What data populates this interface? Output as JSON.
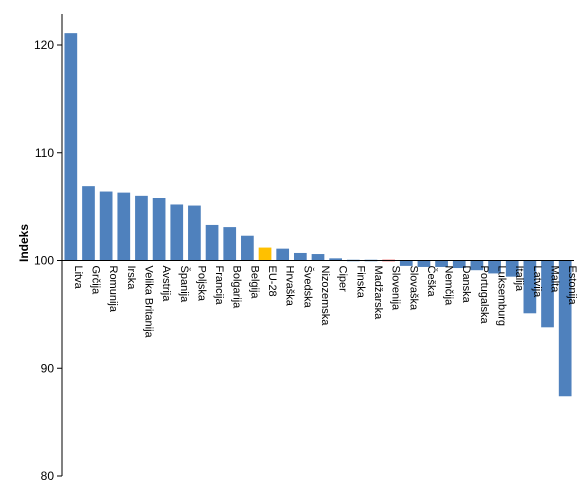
{
  "chart_data": {
    "type": "bar",
    "ylabel": "Indeks",
    "ylim": [
      80,
      125
    ],
    "yticks": [
      80,
      90,
      100,
      110,
      120
    ],
    "baseline": 100,
    "grid": false,
    "default_color": "#4f81bd",
    "categories": [
      "Litva",
      "Grčija",
      "Romunija",
      "Irska",
      "Velika Britanija",
      "Avstrija",
      "Španija",
      "Poljska",
      "Francija",
      "Bolgarija",
      "Belgija",
      "EU-28",
      "Hrvaška",
      "Švedska",
      "Nizozemska",
      "Ciper",
      "Finska",
      "Madžarska",
      "Slovenija",
      "Slovaška",
      "Češka",
      "Nemčija",
      "Danska",
      "Portugalska",
      "Luksemburg",
      "Italija",
      "Latvija",
      "Malta",
      "Estonija"
    ],
    "values": [
      121.1,
      106.9,
      106.4,
      106.3,
      106.0,
      105.8,
      105.2,
      105.1,
      103.3,
      103.1,
      102.3,
      101.2,
      101.1,
      100.7,
      100.6,
      100.2,
      100.1,
      100.0,
      99.9,
      99.5,
      99.4,
      99.4,
      99.3,
      99.1,
      98.8,
      98.5,
      95.1,
      93.8,
      87.4
    ],
    "highlight": {
      "EU-28": "#ffc000",
      "Slovenija": "#e41a1c"
    }
  }
}
